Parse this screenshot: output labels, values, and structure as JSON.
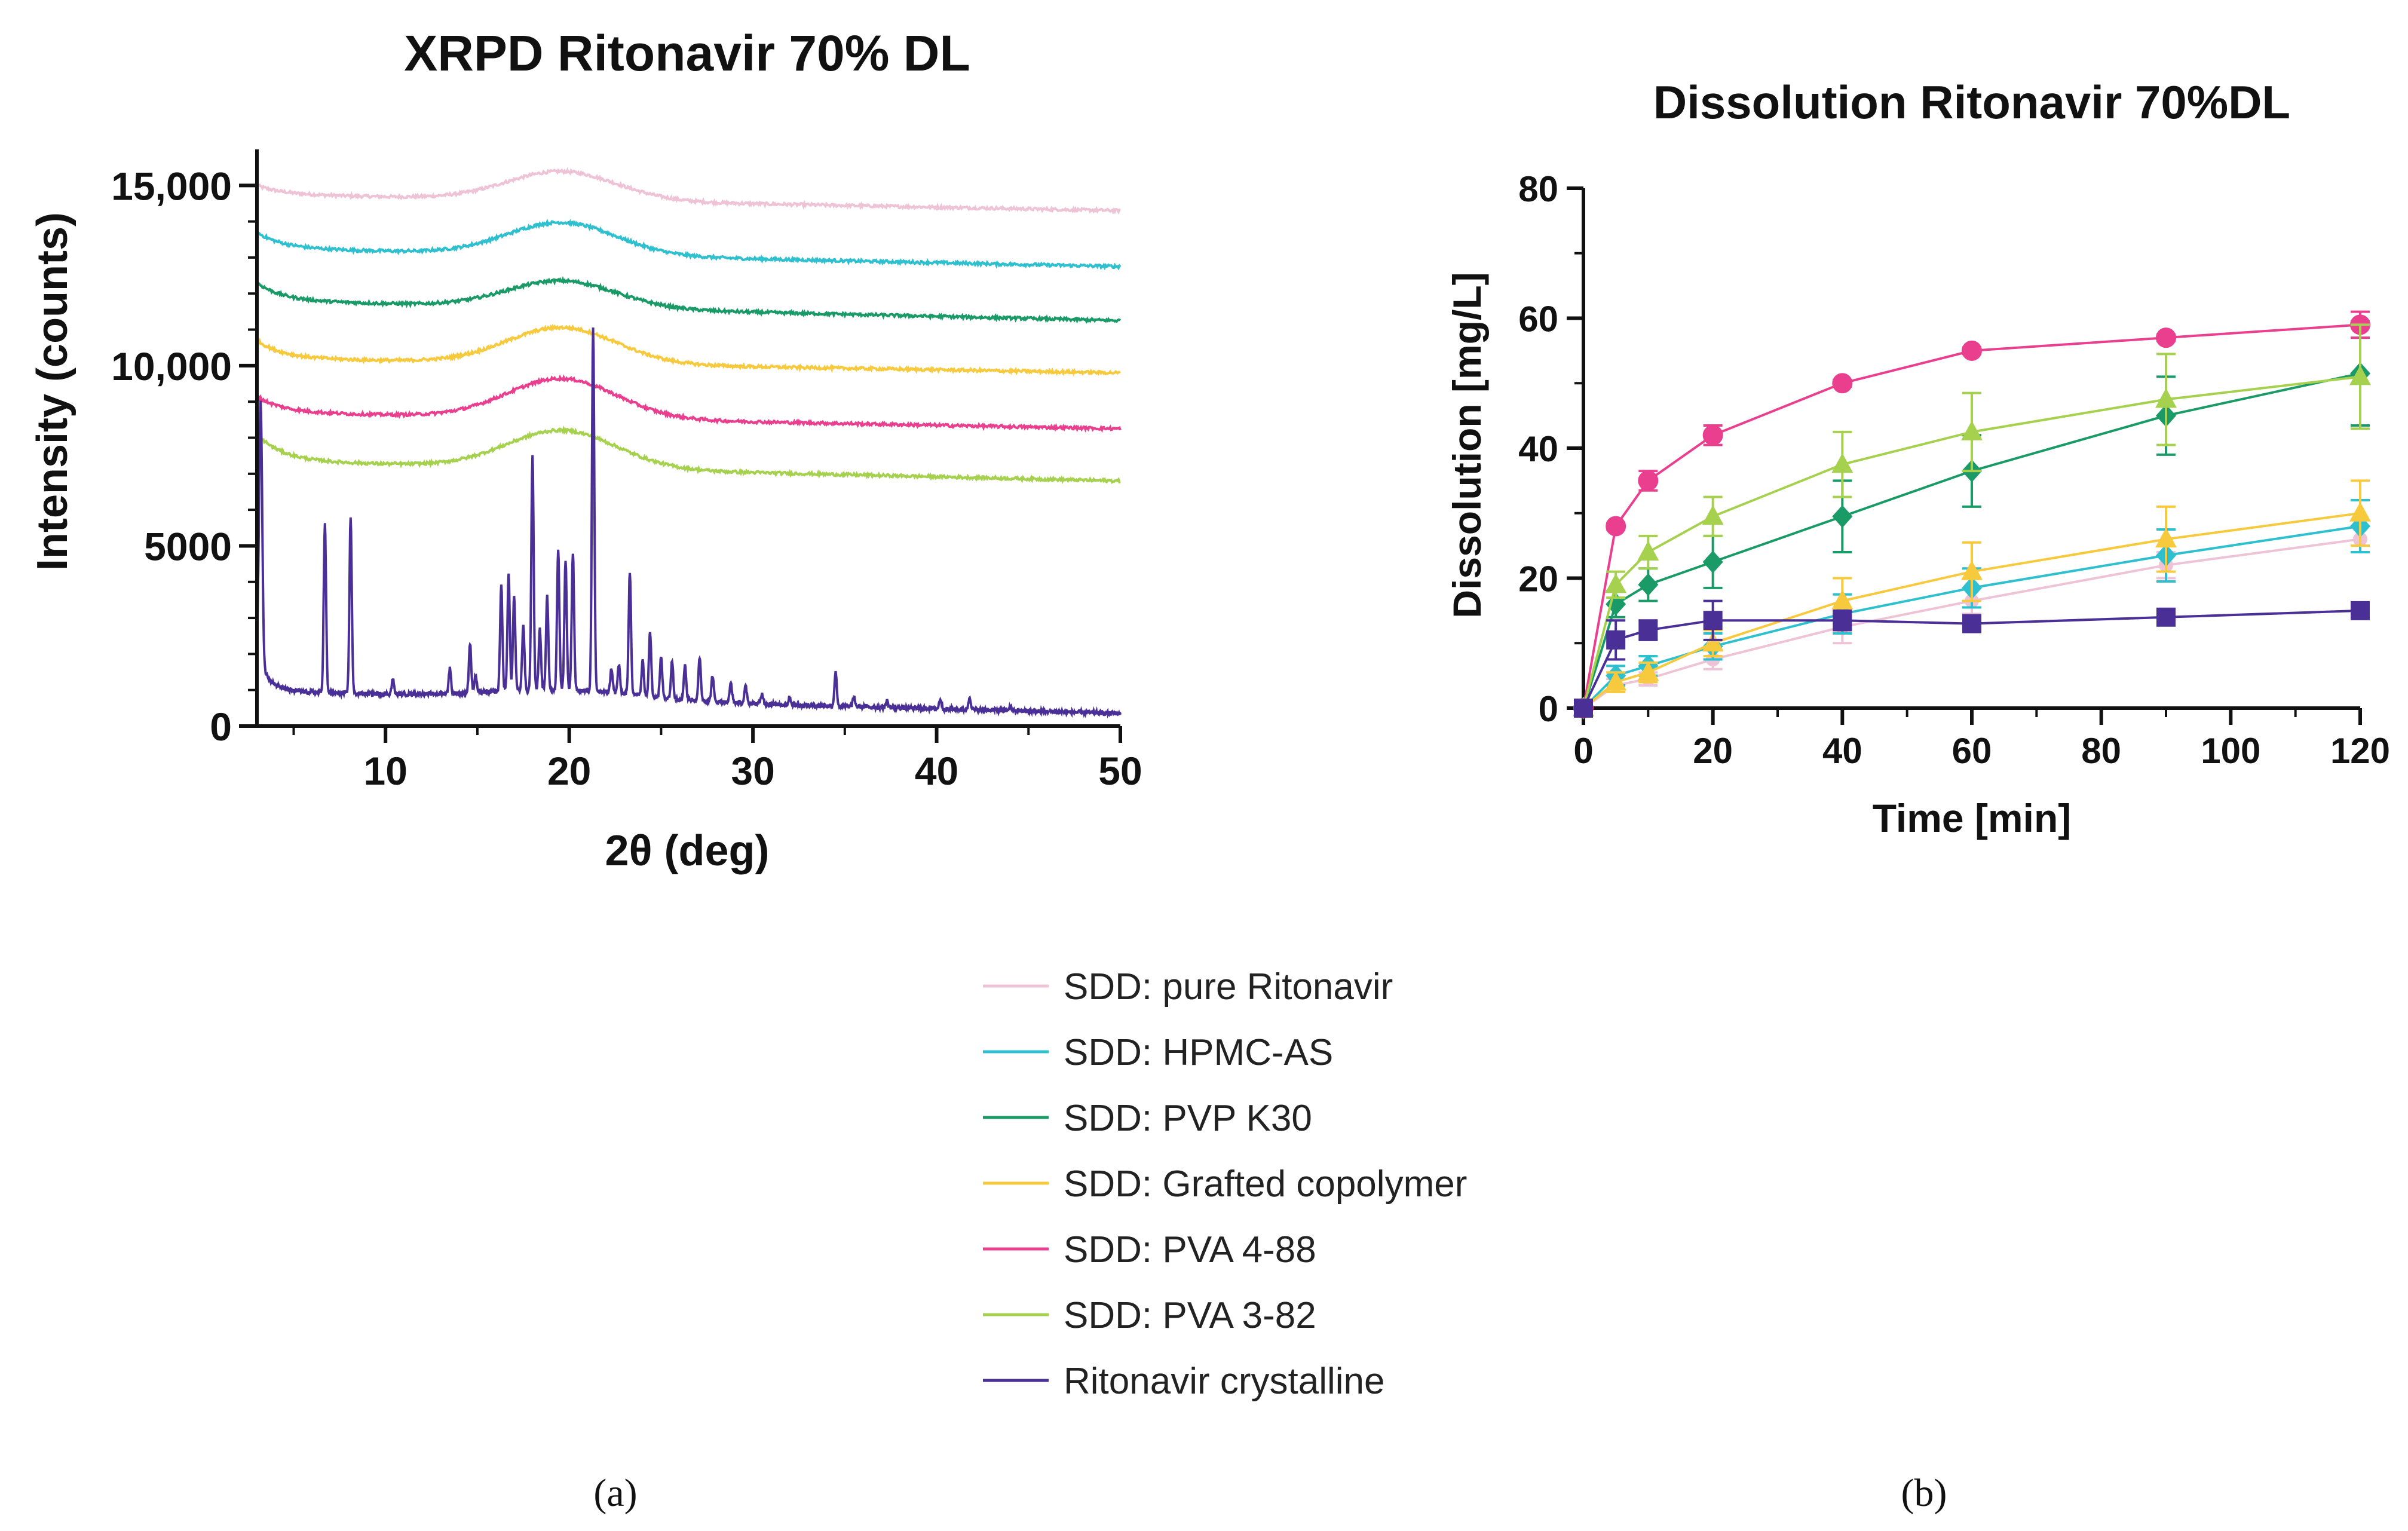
{
  "series_colors": {
    "pure": "#efc3d6",
    "hpmc": "#2fc0d0",
    "pvp": "#1a9a66",
    "grafted": "#f7c93c",
    "pva488": "#ea3f8f",
    "pva382": "#a6d14f",
    "crystalline": "#4a2f96"
  },
  "legend": [
    {
      "label": "SDD: pure Ritonavir",
      "color": "#efc3d6"
    },
    {
      "label": "SDD: HPMC-AS",
      "color": "#2fc0d0"
    },
    {
      "label": "SDD: PVP K30",
      "color": "#1a9a66"
    },
    {
      "label": "SDD: Grafted copolymer",
      "color": "#f7c93c"
    },
    {
      "label": "SDD: PVA 4-88",
      "color": "#ea3f8f"
    },
    {
      "label": "SDD: PVA 3-82",
      "color": "#a6d14f"
    },
    {
      "label": "Ritonavir crystalline",
      "color": "#4a2f96"
    }
  ],
  "panel_labels": {
    "a": "(a)",
    "b": "(b)"
  },
  "chart_data": [
    {
      "type": "line",
      "title": "XRPD Ritonavir 70% DL",
      "xlabel": "2θ (deg)",
      "ylabel": "Intensity (counts)",
      "xlim": [
        3,
        50
      ],
      "ylim": [
        0,
        16000
      ],
      "xticks": [
        10,
        20,
        30,
        40,
        50
      ],
      "xtick_labels": [
        "10",
        "20",
        "30",
        "40",
        "50"
      ],
      "yticks": [
        0,
        5000,
        10000,
        15000
      ],
      "ytick_labels": [
        "0",
        "5000",
        "10,000",
        "15,000"
      ],
      "amorphous_series": [
        {
          "name": "SDD: pure Ritonavir",
          "color": "#efc3d6",
          "start": 15000,
          "base": 14750,
          "end": 14300,
          "halo": 800,
          "noise": 40
        },
        {
          "name": "SDD: HPMC-AS",
          "color": "#2fc0d0",
          "start": 13700,
          "base": 13250,
          "end": 12750,
          "halo": 900,
          "noise": 40
        },
        {
          "name": "SDD: PVP K30",
          "color": "#1a9a66",
          "start": 12300,
          "base": 11800,
          "end": 11250,
          "halo": 750,
          "noise": 40
        },
        {
          "name": "SDD: Grafted copolymer",
          "color": "#f7c93c",
          "start": 10700,
          "base": 10200,
          "end": 9800,
          "halo": 1000,
          "noise": 40
        },
        {
          "name": "SDD: PVA 4-88",
          "color": "#ea3f8f",
          "start": 9150,
          "base": 8700,
          "end": 8250,
          "halo": 1100,
          "noise": 40
        },
        {
          "name": "SDD: PVA 3-82",
          "color": "#a6d14f",
          "start": 8100,
          "base": 7350,
          "end": 6800,
          "halo": 1050,
          "noise": 40
        }
      ],
      "crystalline_series": {
        "name": "Ritonavir crystalline",
        "color": "#4a2f96",
        "background_start": 2000,
        "background_base": 900,
        "background_end": 350,
        "peaks": [
          {
            "x": 3.2,
            "y": 9000
          },
          {
            "x": 6.7,
            "y": 5600
          },
          {
            "x": 8.1,
            "y": 5800
          },
          {
            "x": 10.4,
            "y": 1300
          },
          {
            "x": 13.5,
            "y": 1600
          },
          {
            "x": 14.6,
            "y": 2300
          },
          {
            "x": 14.9,
            "y": 1400
          },
          {
            "x": 16.3,
            "y": 3900
          },
          {
            "x": 16.7,
            "y": 4200
          },
          {
            "x": 17.0,
            "y": 3600
          },
          {
            "x": 17.5,
            "y": 2800
          },
          {
            "x": 18.0,
            "y": 7500
          },
          {
            "x": 18.4,
            "y": 2700
          },
          {
            "x": 18.8,
            "y": 3600
          },
          {
            "x": 19.4,
            "y": 4900
          },
          {
            "x": 19.8,
            "y": 4600
          },
          {
            "x": 20.2,
            "y": 4800
          },
          {
            "x": 21.3,
            "y": 11100
          },
          {
            "x": 22.3,
            "y": 1600
          },
          {
            "x": 22.7,
            "y": 1700
          },
          {
            "x": 23.3,
            "y": 4300
          },
          {
            "x": 24.0,
            "y": 1800
          },
          {
            "x": 24.4,
            "y": 2600
          },
          {
            "x": 25.0,
            "y": 1900
          },
          {
            "x": 25.6,
            "y": 1800
          },
          {
            "x": 26.3,
            "y": 1700
          },
          {
            "x": 27.1,
            "y": 1900
          },
          {
            "x": 27.8,
            "y": 1400
          },
          {
            "x": 28.8,
            "y": 1200
          },
          {
            "x": 29.6,
            "y": 1100
          },
          {
            "x": 30.5,
            "y": 900
          },
          {
            "x": 32.0,
            "y": 800
          },
          {
            "x": 34.5,
            "y": 1500
          },
          {
            "x": 35.5,
            "y": 800
          },
          {
            "x": 37.3,
            "y": 700
          },
          {
            "x": 40.2,
            "y": 750
          },
          {
            "x": 41.8,
            "y": 800
          },
          {
            "x": 44.0,
            "y": 550
          }
        ]
      }
    },
    {
      "type": "line",
      "title": "Dissolution Ritonavir 70%DL",
      "xlabel": "Time [min]",
      "ylabel": "Dissolution [mg/L]",
      "xlim": [
        0,
        120
      ],
      "ylim": [
        0,
        80
      ],
      "xticks": [
        0,
        20,
        40,
        60,
        80,
        100,
        120
      ],
      "xtick_labels": [
        "0",
        "20",
        "40",
        "60",
        "80",
        "100",
        "120"
      ],
      "yticks": [
        0,
        20,
        40,
        60,
        80
      ],
      "ytick_labels": [
        "0",
        "20",
        "40",
        "60",
        "80"
      ],
      "x": [
        0,
        5,
        10,
        20,
        40,
        60,
        90,
        120
      ],
      "series": [
        {
          "name": "SDD: pure Ritonavir",
          "color": "#efc3d6",
          "marker": "circle-small",
          "values": [
            0,
            3.5,
            4.5,
            7.5,
            12.5,
            16.5,
            22,
            26
          ],
          "errors": [
            0,
            1,
            1,
            1.5,
            2.5,
            2,
            2,
            2
          ]
        },
        {
          "name": "SDD: HPMC-AS",
          "color": "#2fc0d0",
          "marker": "diamond",
          "values": [
            0,
            5,
            6.5,
            9.5,
            14.5,
            18.5,
            23.5,
            28
          ],
          "errors": [
            0,
            1.5,
            1.5,
            2,
            3,
            3,
            4,
            4
          ]
        },
        {
          "name": "SDD: PVP K30",
          "color": "#1a9a66",
          "marker": "diamond",
          "values": [
            0,
            16,
            19,
            22.5,
            29.5,
            36.5,
            45,
            51.5
          ],
          "errors": [
            0,
            2,
            2.5,
            4,
            5.5,
            5.5,
            6,
            8
          ]
        },
        {
          "name": "SDD: Grafted copolymer",
          "color": "#f7c93c",
          "marker": "triangle",
          "values": [
            0,
            4,
            5.5,
            10,
            16.5,
            21,
            26,
            30
          ],
          "errors": [
            0,
            1.5,
            1.5,
            2,
            3.5,
            4.5,
            5,
            5
          ]
        },
        {
          "name": "SDD: PVA 4-88",
          "color": "#ea3f8f",
          "marker": "circle",
          "values": [
            0,
            28,
            35,
            42,
            50,
            55,
            57,
            59
          ],
          "errors": [
            0,
            0.5,
            1.5,
            1.5,
            0.5,
            0.5,
            0.5,
            2
          ]
        },
        {
          "name": "SDD: PVA 3-82",
          "color": "#a6d14f",
          "marker": "triangle",
          "values": [
            0,
            19,
            24,
            29.5,
            37.5,
            42.5,
            47.5,
            51
          ],
          "errors": [
            0,
            2,
            2.5,
            3,
            5,
            6,
            7,
            8
          ]
        },
        {
          "name": "Ritonavir crystalline",
          "color": "#4a2f96",
          "marker": "square",
          "values": [
            0,
            10.5,
            12,
            13.5,
            13.5,
            13,
            14,
            15
          ],
          "errors": [
            0,
            3,
            1.5,
            3,
            1.5,
            0.5,
            0.5,
            0.5
          ]
        }
      ]
    }
  ]
}
